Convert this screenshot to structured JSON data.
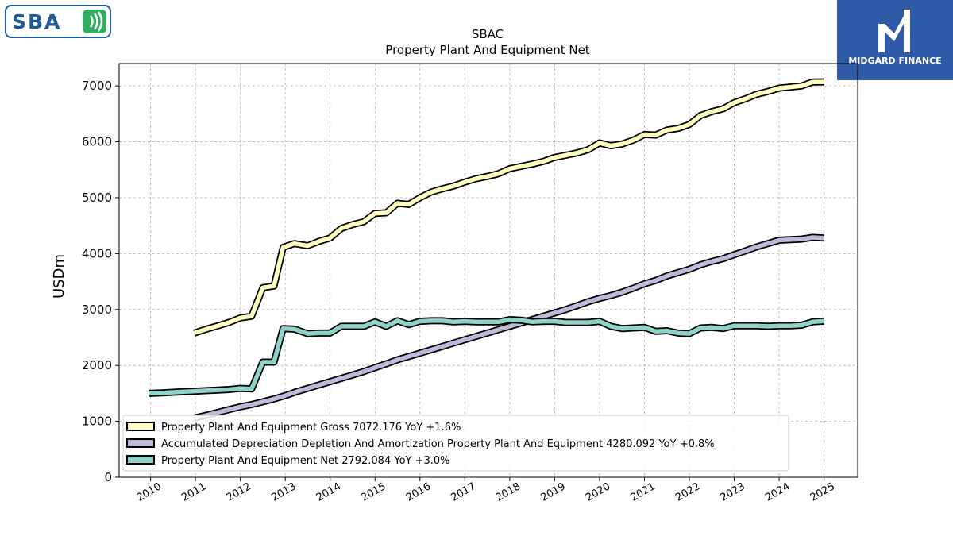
{
  "logos": {
    "left": {
      "text": "SBA",
      "accent": "#2eae5e",
      "color": "#1f5b9a"
    },
    "right": {
      "text": "MIDGARD FINANCE",
      "color": "#2f5aa8"
    }
  },
  "chart_data": {
    "type": "line",
    "title": "SBAC",
    "subtitle": "Property Plant And Equipment Net",
    "ylabel": "USDm",
    "xlabel": "",
    "ylim": [
      0,
      7400
    ],
    "xlim": [
      2009.3,
      2025.75
    ],
    "yticks": [
      0,
      1000,
      2000,
      3000,
      4000,
      5000,
      6000,
      7000
    ],
    "xticks": [
      2010,
      2011,
      2012,
      2013,
      2014,
      2015,
      2016,
      2017,
      2018,
      2019,
      2020,
      2021,
      2022,
      2023,
      2024,
      2025
    ],
    "grid": true,
    "legend_position": "lower-left",
    "series": [
      {
        "name": "Property Plant And Equipment Gross  7072.176 YoY +1.6%",
        "color": "#ffffbf",
        "x": [
          2010.97,
          2011.25,
          2011.5,
          2011.75,
          2012.0,
          2012.25,
          2012.5,
          2012.75,
          2012.95,
          2013.2,
          2013.5,
          2013.75,
          2014.0,
          2014.25,
          2014.5,
          2014.75,
          2015.0,
          2015.25,
          2015.5,
          2015.75,
          2016.0,
          2016.25,
          2016.5,
          2016.75,
          2017.0,
          2017.25,
          2017.5,
          2017.75,
          2018.0,
          2018.25,
          2018.5,
          2018.75,
          2019.0,
          2019.25,
          2019.5,
          2019.75,
          2020.0,
          2020.25,
          2020.5,
          2020.75,
          2021.0,
          2021.25,
          2021.5,
          2021.75,
          2022.0,
          2022.25,
          2022.5,
          2022.75,
          2023.0,
          2023.25,
          2023.5,
          2023.75,
          2024.0,
          2024.25,
          2024.5,
          2024.75,
          2025.0
        ],
        "values": [
          2580,
          2650,
          2710,
          2770,
          2850,
          2880,
          3390,
          3420,
          4110,
          4180,
          4140,
          4220,
          4280,
          4450,
          4520,
          4570,
          4720,
          4730,
          4900,
          4880,
          5000,
          5100,
          5160,
          5210,
          5280,
          5340,
          5380,
          5430,
          5520,
          5560,
          5600,
          5650,
          5720,
          5760,
          5800,
          5860,
          5980,
          5930,
          5960,
          6030,
          6130,
          6120,
          6210,
          6240,
          6310,
          6470,
          6540,
          6590,
          6700,
          6770,
          6850,
          6900,
          6960,
          6980,
          7000,
          7070,
          7072
        ]
      },
      {
        "name": "Accumulated Depreciation Depletion And Amortization Property Plant And Equipment  4280.092 YoY +0.8%",
        "color": "#bebada",
        "x": [
          2010.97,
          2011.25,
          2011.5,
          2011.75,
          2012.0,
          2012.25,
          2012.5,
          2012.75,
          2013.0,
          2013.25,
          2013.5,
          2013.75,
          2014.0,
          2014.25,
          2014.5,
          2014.75,
          2015.0,
          2015.25,
          2015.5,
          2015.75,
          2016.0,
          2016.25,
          2016.5,
          2016.75,
          2017.0,
          2017.25,
          2017.5,
          2017.75,
          2018.0,
          2018.25,
          2018.5,
          2018.75,
          2019.0,
          2019.25,
          2019.5,
          2019.75,
          2020.0,
          2020.25,
          2020.5,
          2020.75,
          2021.0,
          2021.25,
          2021.5,
          2021.75,
          2022.0,
          2022.25,
          2022.5,
          2022.75,
          2023.0,
          2023.25,
          2023.5,
          2023.75,
          2024.0,
          2024.25,
          2024.5,
          2024.75,
          2025.0
        ],
        "values": [
          1060,
          1110,
          1160,
          1210,
          1260,
          1300,
          1350,
          1400,
          1460,
          1530,
          1590,
          1650,
          1710,
          1770,
          1830,
          1890,
          1960,
          2030,
          2100,
          2160,
          2220,
          2280,
          2340,
          2400,
          2460,
          2520,
          2580,
          2640,
          2700,
          2760,
          2820,
          2880,
          2940,
          3000,
          3070,
          3140,
          3200,
          3250,
          3310,
          3380,
          3460,
          3520,
          3600,
          3660,
          3720,
          3800,
          3860,
          3910,
          3980,
          4050,
          4120,
          4180,
          4240,
          4250,
          4260,
          4290,
          4280
        ]
      },
      {
        "name": "Property Plant And Equipment Net  2792.084 YoY +3.0%",
        "color": "#8dd3c7",
        "x": [
          2009.97,
          2010.25,
          2010.5,
          2010.75,
          2011.0,
          2011.25,
          2011.5,
          2011.75,
          2012.0,
          2012.25,
          2012.5,
          2012.75,
          2012.95,
          2013.2,
          2013.5,
          2013.75,
          2014.0,
          2014.25,
          2014.5,
          2014.75,
          2015.0,
          2015.25,
          2015.5,
          2015.75,
          2016.0,
          2016.25,
          2016.5,
          2016.75,
          2017.0,
          2017.25,
          2017.5,
          2017.75,
          2018.0,
          2018.25,
          2018.5,
          2018.75,
          2019.0,
          2019.25,
          2019.5,
          2019.75,
          2020.0,
          2020.25,
          2020.5,
          2020.75,
          2021.0,
          2021.25,
          2021.5,
          2021.75,
          2022.0,
          2022.25,
          2022.5,
          2022.75,
          2023.0,
          2023.25,
          2023.5,
          2023.75,
          2024.0,
          2024.25,
          2024.5,
          2024.75,
          2025.0
        ],
        "values": [
          1500,
          1510,
          1520,
          1530,
          1540,
          1550,
          1560,
          1570,
          1590,
          1580,
          2060,
          2060,
          2660,
          2650,
          2570,
          2580,
          2580,
          2700,
          2700,
          2700,
          2780,
          2700,
          2800,
          2730,
          2790,
          2800,
          2800,
          2780,
          2790,
          2780,
          2780,
          2780,
          2820,
          2810,
          2780,
          2790,
          2790,
          2770,
          2770,
          2770,
          2790,
          2700,
          2660,
          2670,
          2680,
          2610,
          2620,
          2580,
          2570,
          2670,
          2680,
          2660,
          2710,
          2710,
          2710,
          2700,
          2710,
          2710,
          2720,
          2780,
          2792
        ]
      }
    ]
  }
}
